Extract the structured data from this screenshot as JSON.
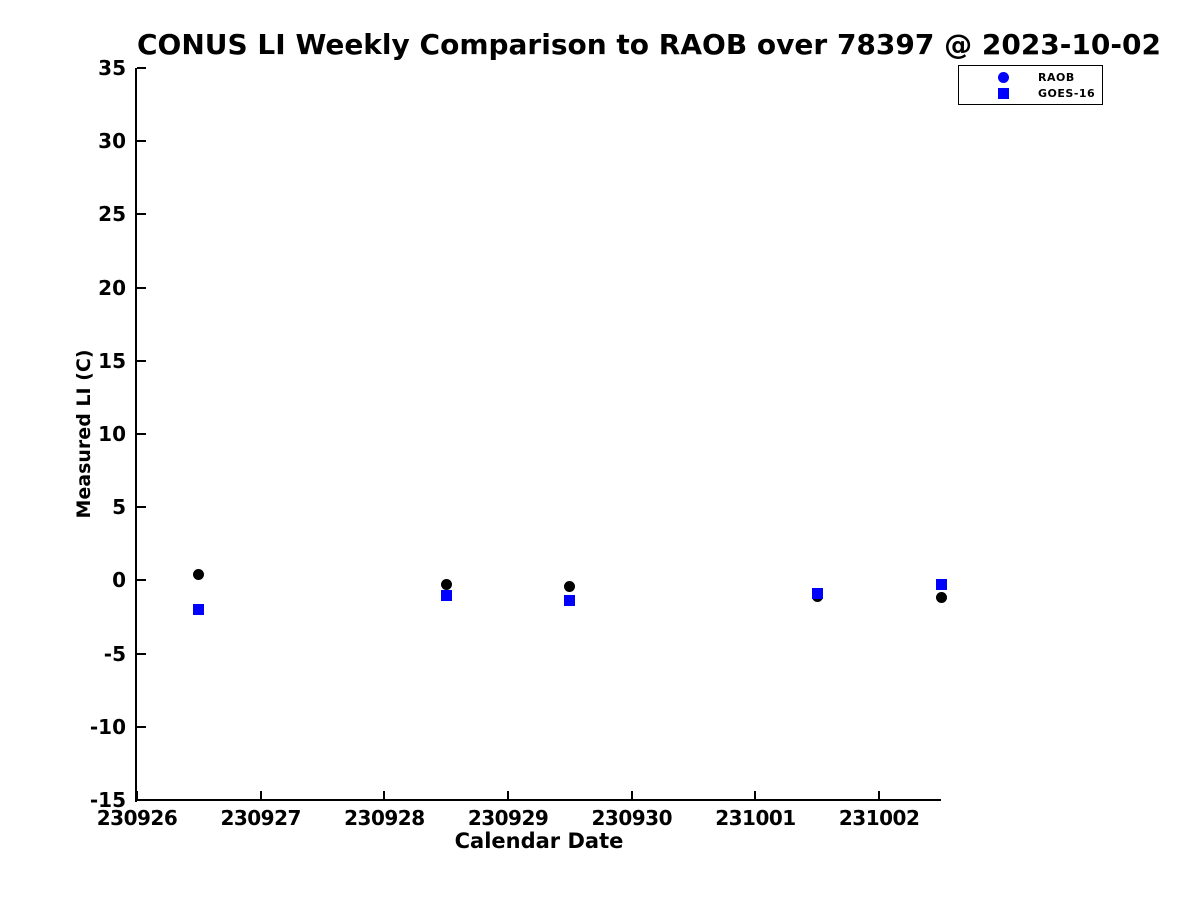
{
  "chart_data": {
    "type": "scatter",
    "title": "CONUS LI Weekly Comparison to RAOB over 78397 @ 2023-10-02",
    "xlabel": "Calendar Date",
    "ylabel": "Measured LI (C)",
    "grid": false,
    "xlim": [
      0,
      6.5
    ],
    "ylim": [
      -15,
      35
    ],
    "x_ticks": [
      {
        "pos": 0,
        "label": "230926"
      },
      {
        "pos": 1,
        "label": "230927"
      },
      {
        "pos": 2,
        "label": "230928"
      },
      {
        "pos": 3,
        "label": "230929"
      },
      {
        "pos": 4,
        "label": "230930"
      },
      {
        "pos": 5,
        "label": "231001"
      },
      {
        "pos": 6,
        "label": "231002"
      }
    ],
    "y_ticks": [
      35,
      30,
      25,
      20,
      15,
      10,
      5,
      0,
      -5,
      -10,
      -15
    ],
    "legend": {
      "position": "top-right",
      "marker_color": "#0000ff"
    },
    "series": [
      {
        "name": "RAOB",
        "marker": "circle",
        "color": "#000000",
        "x": [
          0.5,
          2.5,
          3.5,
          5.5,
          6.5
        ],
        "x_dates": [
          230926.5,
          230928.5,
          230929.5,
          231001.5,
          231002.5
        ],
        "y": [
          0.4,
          -0.3,
          -0.4,
          -1.1,
          -1.2
        ]
      },
      {
        "name": "GOES-16",
        "marker": "square",
        "color": "#0000ff",
        "x": [
          0.5,
          2.5,
          3.5,
          5.5,
          6.5
        ],
        "x_dates": [
          230926.5,
          230928.5,
          230929.5,
          231001.5,
          231002.5
        ],
        "y": [
          -2.0,
          -1.0,
          -1.4,
          -0.9,
          -0.3
        ]
      }
    ]
  }
}
